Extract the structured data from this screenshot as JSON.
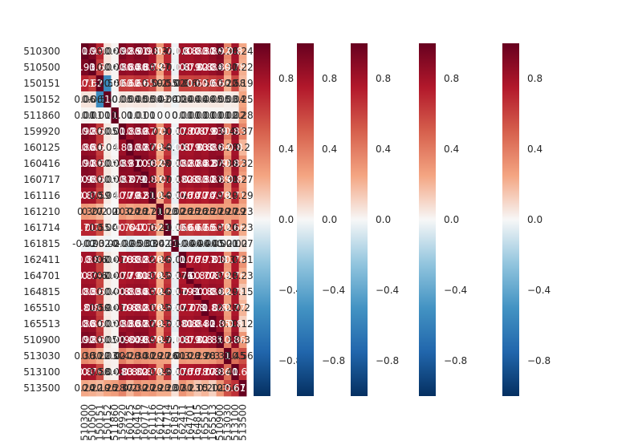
{
  "chart_data": {
    "type": "heatmap",
    "title": "",
    "xlabel": "",
    "ylabel": "",
    "labels": [
      "510300",
      "510500",
      "150151",
      "150152",
      "511860",
      "159920",
      "160125",
      "160416",
      "160717",
      "161116",
      "161210",
      "161714",
      "161815",
      "162411",
      "164701",
      "164815",
      "165510",
      "165513",
      "510900",
      "513030",
      "513100",
      "513500"
    ],
    "vlim": [
      -1.0,
      1.0
    ],
    "cmap": "RdBu_r",
    "colorbar": {
      "count": 5,
      "ticks": [
        0.8,
        0.4,
        0.0,
        -0.4,
        -0.8
      ],
      "tick_labels": [
        "0.8",
        "0.4",
        "0.0",
        "−0.4",
        "−0.8"
      ]
    },
    "matrix": [
      [
        1.0,
        0.93,
        0.71,
        0.06,
        0.01,
        0.92,
        0.86,
        0.91,
        0.9,
        0.8,
        0.3,
        0.71,
        -0.02,
        0.8,
        0.8,
        0.83,
        0.81,
        0.86,
        0.92,
        0.36,
        0.8,
        0.24
      ],
      [
        0.93,
        1.0,
        0.62,
        0.06,
        0.01,
        0.86,
        0.84,
        0.88,
        0.88,
        0.79,
        0.27,
        0.7,
        -0.03,
        0.8,
        0.79,
        0.82,
        0.8,
        0.84,
        0.89,
        0.31,
        0.78,
        0.22
      ],
      [
        0.71,
        0.62,
        1.0,
        -0.55,
        0.01,
        0.63,
        0.62,
        0.66,
        0.65,
        0.59,
        0.2,
        0.55,
        0.02,
        0.6,
        0.6,
        0.61,
        0.59,
        0.63,
        0.66,
        0.22,
        0.58,
        0.19
      ],
      [
        0.06,
        0.06,
        -0.55,
        1.0,
        0.0,
        0.05,
        0.04,
        0.05,
        0.05,
        0.04,
        0.02,
        0.04,
        -0.02,
        0.04,
        0.04,
        0.04,
        0.04,
        0.05,
        0.05,
        0.03,
        0.04,
        0.25
      ],
      [
        0.01,
        0.01,
        0.01,
        0.0,
        1.0,
        0.01,
        0.0,
        0.01,
        0.01,
        0.0,
        0.0,
        0.0,
        0.0,
        0.01,
        0.01,
        0.01,
        0.01,
        0.01,
        0.01,
        0.02,
        0.02,
        0.28
      ],
      [
        0.92,
        0.86,
        0.63,
        0.05,
        0.01,
        1.0,
        0.83,
        0.89,
        0.87,
        0.77,
        0.3,
        0.7,
        -0.02,
        0.78,
        0.77,
        0.8,
        0.79,
        0.83,
        0.9,
        0.4,
        0.83,
        0.37
      ],
      [
        0.86,
        0.84,
        0.62,
        0.04,
        0.0,
        0.83,
        1.0,
        0.87,
        0.87,
        0.79,
        0.24,
        0.64,
        -0.05,
        0.8,
        0.79,
        0.83,
        0.8,
        0.86,
        0.84,
        0.28,
        0.8,
        0.2
      ],
      [
        0.91,
        0.88,
        0.66,
        0.05,
        0.01,
        0.89,
        0.87,
        1.0,
        0.9,
        0.82,
        0.28,
        0.7,
        -0.03,
        0.82,
        0.81,
        0.84,
        0.82,
        0.87,
        0.9,
        0.34,
        0.82,
        0.32
      ],
      [
        0.9,
        0.88,
        0.65,
        0.05,
        0.01,
        0.87,
        0.87,
        0.9,
        1.0,
        0.81,
        0.27,
        0.7,
        -0.03,
        0.82,
        0.8,
        0.83,
        0.81,
        0.87,
        0.89,
        0.31,
        0.8,
        0.27
      ],
      [
        0.8,
        0.79,
        0.59,
        0.04,
        0.0,
        0.77,
        0.79,
        0.82,
        0.81,
        1.0,
        0.24,
        0.62,
        -0.04,
        0.76,
        0.74,
        0.77,
        0.74,
        0.79,
        0.78,
        0.29,
        0.71,
        0.29
      ],
      [
        0.3,
        0.27,
        0.2,
        0.02,
        0.0,
        0.3,
        0.24,
        0.28,
        0.27,
        0.24,
        1.0,
        0.23,
        0.02,
        0.26,
        0.25,
        0.26,
        0.25,
        0.27,
        0.29,
        0.27,
        0.29,
        0.23
      ],
      [
        0.71,
        0.7,
        0.55,
        0.04,
        0.0,
        0.7,
        0.64,
        0.7,
        0.7,
        0.62,
        0.23,
        1.0,
        -0.01,
        0.66,
        0.64,
        0.67,
        0.65,
        0.68,
        0.71,
        0.26,
        0.66,
        0.23
      ],
      [
        -0.02,
        -0.03,
        0.02,
        -0.02,
        0.0,
        -0.02,
        -0.05,
        -0.03,
        -0.03,
        -0.04,
        0.02,
        -0.01,
        1.0,
        -0.04,
        -0.04,
        -0.04,
        -0.04,
        -0.05,
        -0.02,
        0.01,
        -0.02,
        0.07
      ],
      [
        0.8,
        0.8,
        0.6,
        0.04,
        0.01,
        0.78,
        0.8,
        0.82,
        0.82,
        0.76,
        0.26,
        0.66,
        -0.04,
        1.0,
        0.76,
        0.79,
        0.77,
        0.81,
        0.8,
        0.3,
        0.76,
        0.31
      ],
      [
        0.8,
        0.79,
        0.6,
        0.04,
        0.01,
        0.77,
        0.79,
        0.81,
        0.8,
        0.74,
        0.25,
        0.64,
        -0.04,
        0.76,
        1.0,
        0.8,
        0.77,
        0.8,
        0.79,
        0.28,
        0.76,
        0.23
      ],
      [
        0.83,
        0.82,
        0.61,
        0.04,
        0.01,
        0.8,
        0.83,
        0.84,
        0.83,
        0.77,
        0.26,
        0.67,
        -0.04,
        0.79,
        0.8,
        1.0,
        0.8,
        0.84,
        0.82,
        0.29,
        0.78,
        0.15
      ],
      [
        0.81,
        0.8,
        0.59,
        0.04,
        0.01,
        0.79,
        0.8,
        0.82,
        0.81,
        0.74,
        0.25,
        0.65,
        -0.04,
        0.77,
        0.77,
        0.8,
        1.0,
        0.82,
        0.8,
        0.28,
        0.77,
        0.2
      ],
      [
        0.86,
        0.84,
        0.63,
        0.05,
        0.01,
        0.83,
        0.86,
        0.87,
        0.87,
        0.79,
        0.27,
        0.68,
        -0.05,
        0.81,
        0.8,
        0.84,
        0.82,
        1.0,
        0.85,
        0.3,
        0.8,
        0.12
      ],
      [
        0.92,
        0.89,
        0.66,
        0.05,
        0.01,
        0.9,
        0.84,
        0.9,
        0.89,
        0.78,
        0.29,
        0.71,
        -0.02,
        0.8,
        0.79,
        0.82,
        0.8,
        0.85,
        1.0,
        0.37,
        0.86,
        0.3
      ],
      [
        0.36,
        0.31,
        0.22,
        0.03,
        0.02,
        0.4,
        0.28,
        0.34,
        0.31,
        0.29,
        0.27,
        0.26,
        0.01,
        0.3,
        0.28,
        0.29,
        0.28,
        0.3,
        0.37,
        1.0,
        0.45,
        0.56
      ],
      [
        0.8,
        0.78,
        0.58,
        0.04,
        0.02,
        0.83,
        0.8,
        0.82,
        0.8,
        0.71,
        0.29,
        0.66,
        -0.02,
        0.76,
        0.76,
        0.78,
        0.77,
        0.8,
        0.86,
        0.45,
        1.0,
        0.67
      ],
      [
        0.24,
        0.22,
        0.19,
        0.25,
        0.28,
        0.37,
        0.2,
        0.32,
        0.27,
        0.29,
        0.23,
        0.23,
        0.07,
        0.31,
        0.23,
        0.15,
        0.2,
        0.12,
        0.3,
        0.56,
        0.67,
        1.0
      ]
    ]
  }
}
